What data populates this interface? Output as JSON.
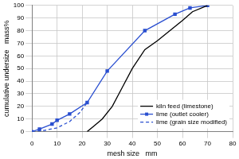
{
  "chart_data": {
    "type": "line",
    "x_label": "mesh size   mm",
    "y_label": "cumulative undersize   mass%",
    "xlim": [
      0,
      80
    ],
    "xticks": [
      0,
      10,
      20,
      30,
      40,
      50,
      60,
      70,
      80
    ],
    "ylim": [
      0,
      100
    ],
    "yticks": [
      0,
      10,
      20,
      30,
      40,
      50,
      60,
      70,
      80,
      90,
      100
    ],
    "grid": true,
    "legend": "lower right",
    "series": [
      {
        "name": "kiln feed (limestone)",
        "color": "#000000",
        "marker": "none",
        "line_style": "solid",
        "x": [
          22,
          25,
          28,
          32,
          36,
          40,
          45,
          50,
          55,
          60,
          64,
          70
        ],
        "values": [
          0,
          5,
          10,
          20,
          35,
          50,
          65,
          72,
          80,
          88,
          95,
          100
        ]
      },
      {
        "name": "lime (outlet cooler)",
        "color": "#2a4fd0",
        "marker": "square",
        "line_style": "solid",
        "x": [
          0,
          3,
          8,
          10,
          15,
          22,
          30,
          45,
          57,
          63,
          70
        ],
        "values": [
          0,
          2,
          6,
          9,
          14,
          23,
          48,
          80,
          93,
          98,
          100
        ]
      },
      {
        "name": "lime (grain size modified)",
        "color": "#2a4fd0",
        "marker": "none",
        "line_style": "dashed",
        "x": [
          0,
          5,
          10,
          15,
          19,
          22
        ],
        "values": [
          0,
          1,
          3,
          8,
          15,
          23
        ]
      }
    ]
  }
}
